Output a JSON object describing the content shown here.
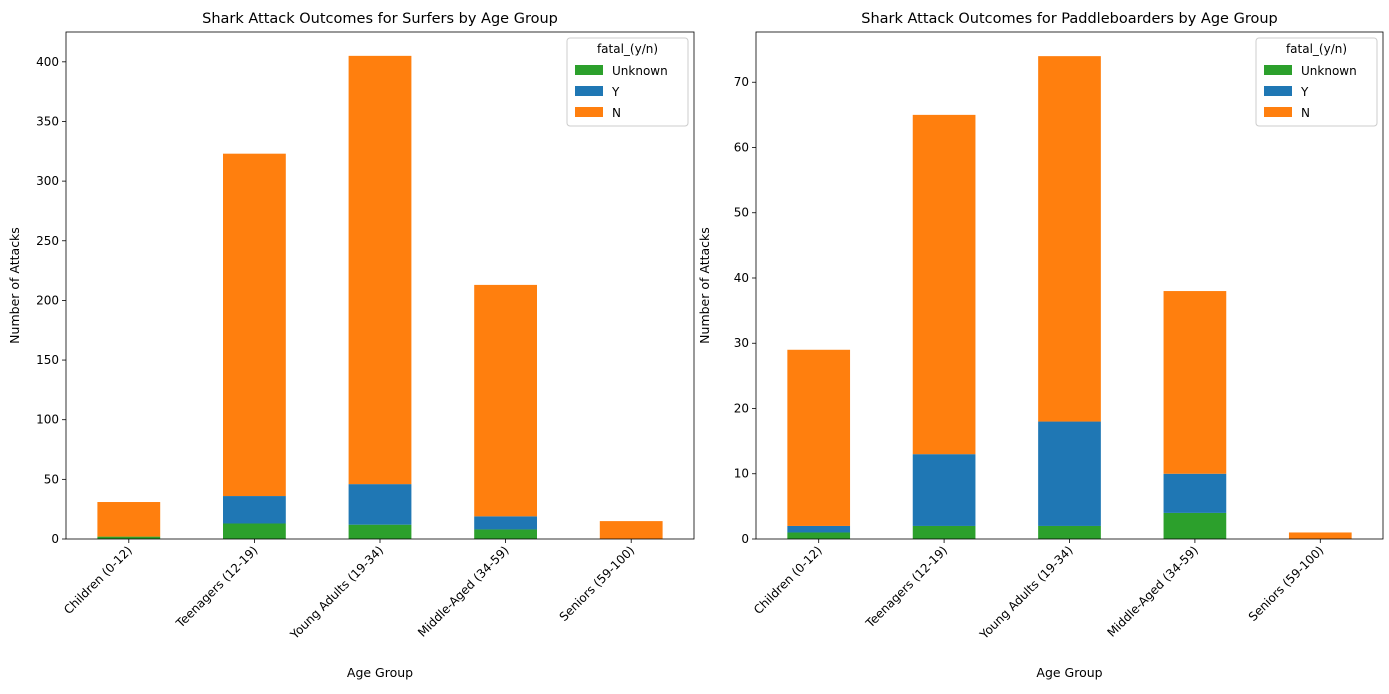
{
  "chart_data": [
    {
      "type": "bar",
      "stacked": true,
      "title": "Shark Attack Outcomes for Surfers by Age Group",
      "xlabel": "Age Group",
      "ylabel": "Number of Attacks",
      "categories": [
        "Children (0-12)",
        "Teenagers (12-19)",
        "Young Adults (19-34)",
        "Middle-Aged (34-59)",
        "Seniors (59-100)"
      ],
      "ylim": [
        0,
        425
      ],
      "yticks": [
        0,
        50,
        100,
        150,
        200,
        250,
        300,
        350,
        400
      ],
      "legend_title": "fatal_(y/n)",
      "legend_position": "top-right",
      "grid": false,
      "series": [
        {
          "name": "Unknown",
          "color": "#2ca02c",
          "values": [
            2,
            13,
            12,
            8,
            0
          ]
        },
        {
          "name": "Y",
          "color": "#1f77b4",
          "values": [
            0,
            23,
            34,
            11,
            0
          ]
        },
        {
          "name": "N",
          "color": "#ff7f0e",
          "values": [
            29,
            287,
            359,
            194,
            15
          ]
        }
      ]
    },
    {
      "type": "bar",
      "stacked": true,
      "title": "Shark Attack Outcomes for Paddleboarders by Age Group",
      "xlabel": "Age Group",
      "ylabel": "Number of Attacks",
      "categories": [
        "Children (0-12)",
        "Teenagers (12-19)",
        "Young Adults (19-34)",
        "Middle-Aged (34-59)",
        "Seniors (59-100)"
      ],
      "ylim": [
        0,
        77.7
      ],
      "yticks": [
        0,
        10,
        20,
        30,
        40,
        50,
        60,
        70
      ],
      "legend_title": "fatal_(y/n)",
      "legend_position": "top-right",
      "grid": false,
      "series": [
        {
          "name": "Unknown",
          "color": "#2ca02c",
          "values": [
            1,
            2,
            2,
            4,
            0
          ]
        },
        {
          "name": "Y",
          "color": "#1f77b4",
          "values": [
            1,
            11,
            16,
            6,
            0
          ]
        },
        {
          "name": "N",
          "color": "#ff7f0e",
          "values": [
            27,
            52,
            56,
            28,
            1
          ]
        }
      ]
    }
  ]
}
